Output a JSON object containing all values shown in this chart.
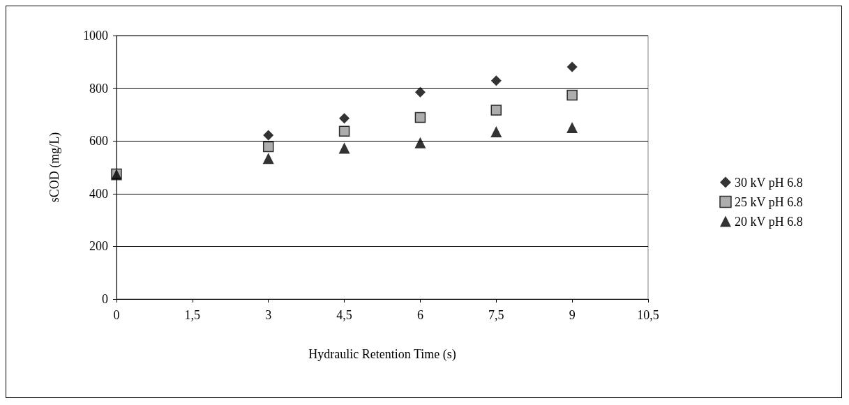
{
  "chart_data": {
    "type": "scatter",
    "xlabel": "Hydraulic Retention Time (s)",
    "ylabel": "sCOD (mg/L)",
    "x": [
      0,
      3,
      4.5,
      6,
      7.5,
      9
    ],
    "xlim": [
      0,
      10.5
    ],
    "xticks": [
      {
        "value": 0,
        "label": "0"
      },
      {
        "value": 1.5,
        "label": "1,5"
      },
      {
        "value": 3,
        "label": "3"
      },
      {
        "value": 4.5,
        "label": "4,5"
      },
      {
        "value": 6,
        "label": "6"
      },
      {
        "value": 7.5,
        "label": "7,5"
      },
      {
        "value": 9,
        "label": "9"
      },
      {
        "value": 10.5,
        "label": "10,5"
      }
    ],
    "ylim": [
      0,
      1000
    ],
    "yticks": [
      0,
      200,
      400,
      600,
      800,
      1000
    ],
    "grid": "y",
    "legend": "right",
    "series": [
      {
        "name": "30 kV pH 6.8",
        "color": "#000000",
        "marker": "diamond",
        "values": [
          null,
          622,
          686,
          785,
          829,
          881
        ]
      },
      {
        "name": "25 kV pH 6.8",
        "color": "#999999",
        "marker": "square",
        "values": [
          475,
          578,
          637,
          689,
          717,
          774
        ]
      },
      {
        "name": "20 kV pH 6.8",
        "color": "#000000",
        "marker": "triangle",
        "values": [
          472,
          534,
          573,
          593,
          635,
          651
        ]
      }
    ]
  }
}
